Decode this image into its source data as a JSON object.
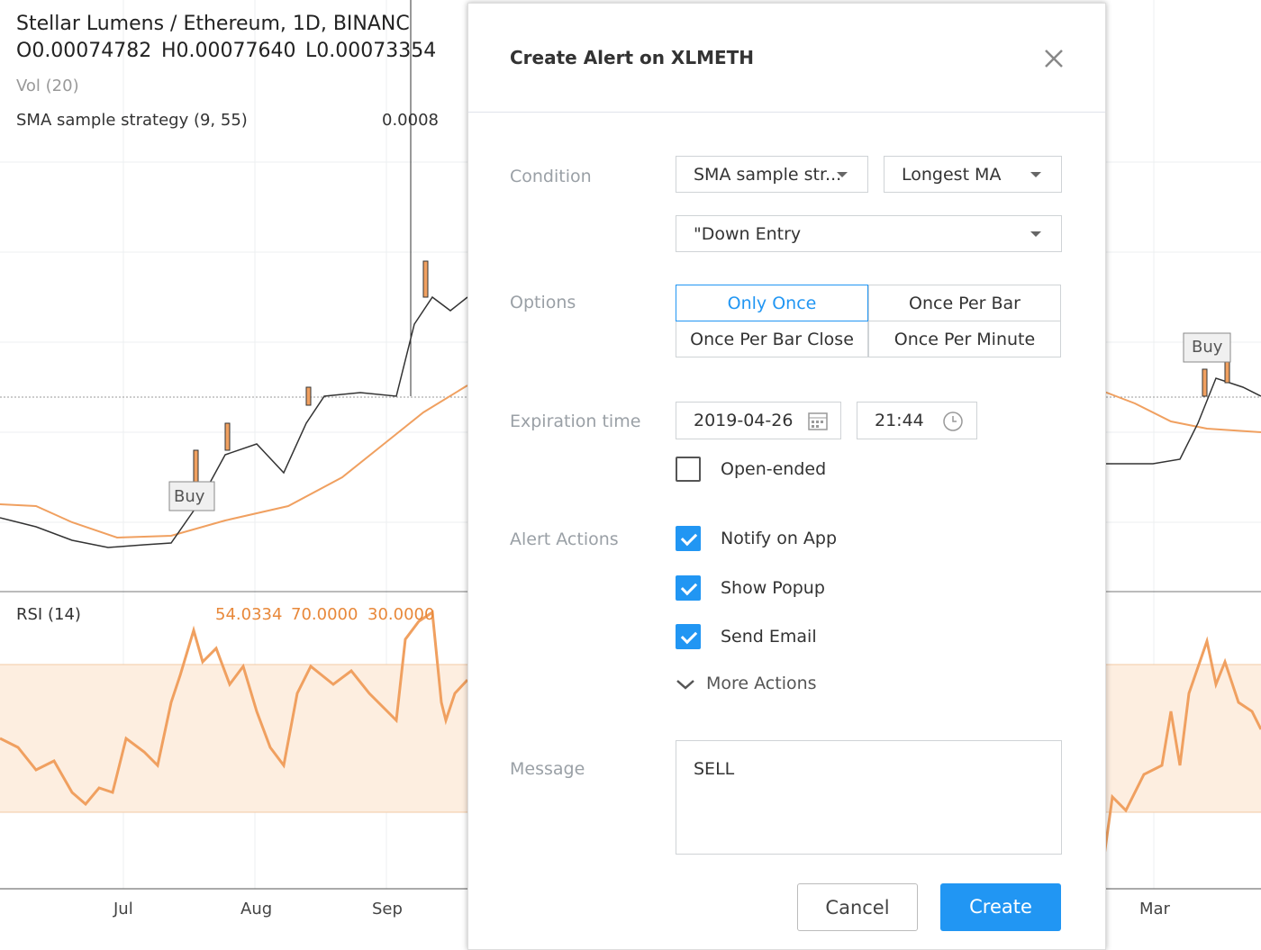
{
  "chart_header": {
    "symbol": "Stellar Lumens / Ethereum, 1D, BINANC",
    "ohlc": [
      "O0.00074782",
      "H0.00077640",
      "L0.00073354"
    ],
    "volume": "Vol (20)",
    "strategy": "SMA sample strategy (9, 55)",
    "strategy_value": "0.0008",
    "rsi": "RSI (14)",
    "rsi_values": [
      "54.0334",
      "70.0000",
      "30.0000"
    ],
    "x_labels": [
      "Jul",
      "Aug",
      "Sep",
      "Mar"
    ],
    "markers": [
      "Buy",
      "Buy"
    ]
  },
  "dialog": {
    "title": "Create Alert on XLMETH",
    "condition": {
      "label": "Condition",
      "selects": [
        "SMA sample str...",
        "Longest MA",
        "\"Down Entry"
      ]
    },
    "options": {
      "label": "Options",
      "items": [
        {
          "label": "Only Once",
          "selected": true
        },
        {
          "label": "Once Per Bar",
          "selected": false
        },
        {
          "label": "Once Per Bar Close",
          "selected": false
        },
        {
          "label": "Once Per Minute",
          "selected": false
        }
      ]
    },
    "expiration": {
      "label": "Expiration time",
      "date": "2019-04-26",
      "time": "21:44",
      "open_ended": {
        "label": "Open-ended",
        "checked": false
      }
    },
    "alert_actions": {
      "label": "Alert Actions",
      "items": [
        {
          "label": "Notify on App",
          "checked": true
        },
        {
          "label": "Show Popup",
          "checked": true
        },
        {
          "label": "Send Email",
          "checked": true
        }
      ],
      "more": "More Actions"
    },
    "message": {
      "label": "Message",
      "text": "SELL"
    },
    "buttons": {
      "cancel": "Cancel",
      "create": "Create"
    }
  }
}
